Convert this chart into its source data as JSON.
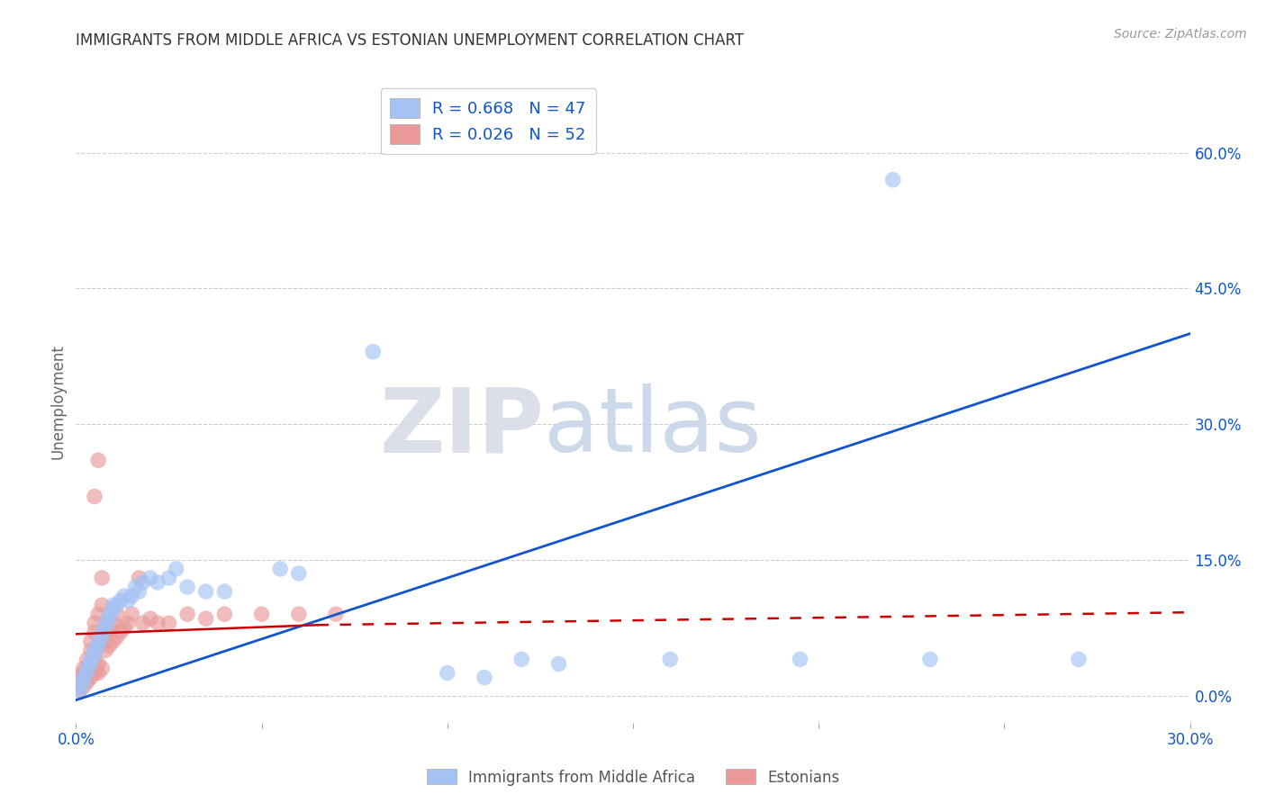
{
  "title": "IMMIGRANTS FROM MIDDLE AFRICA VS ESTONIAN UNEMPLOYMENT CORRELATION CHART",
  "source": "Source: ZipAtlas.com",
  "ylabel_label": "Unemployment",
  "right_yticks": [
    0.0,
    0.15,
    0.3,
    0.45,
    0.6
  ],
  "right_ytick_labels": [
    "0.0%",
    "15.0%",
    "30.0%",
    "45.0%",
    "60.0%"
  ],
  "xlim": [
    0.0,
    0.3
  ],
  "ylim": [
    -0.03,
    0.68
  ],
  "legend1_label": "R = 0.668   N = 47",
  "legend2_label": "R = 0.026   N = 52",
  "legend_bottom_label1": "Immigrants from Middle Africa",
  "legend_bottom_label2": "Estonians",
  "blue_color": "#a4c2f4",
  "pink_color": "#ea9999",
  "blue_line_color": "#1155cc",
  "pink_line_color": "#cc0000",
  "watermark_zip": "ZIP",
  "watermark_atlas": "atlas",
  "blue_scatter": [
    [
      0.001,
      0.01
    ],
    [
      0.001,
      0.005
    ],
    [
      0.002,
      0.02
    ],
    [
      0.002,
      0.015
    ],
    [
      0.003,
      0.03
    ],
    [
      0.003,
      0.025
    ],
    [
      0.004,
      0.035
    ],
    [
      0.004,
      0.04
    ],
    [
      0.005,
      0.045
    ],
    [
      0.005,
      0.05
    ],
    [
      0.006,
      0.055
    ],
    [
      0.006,
      0.06
    ],
    [
      0.007,
      0.065
    ],
    [
      0.007,
      0.07
    ],
    [
      0.008,
      0.075
    ],
    [
      0.008,
      0.08
    ],
    [
      0.009,
      0.085
    ],
    [
      0.009,
      0.09
    ],
    [
      0.01,
      0.095
    ],
    [
      0.01,
      0.1
    ],
    [
      0.011,
      0.1
    ],
    [
      0.012,
      0.105
    ],
    [
      0.013,
      0.11
    ],
    [
      0.014,
      0.105
    ],
    [
      0.015,
      0.11
    ],
    [
      0.016,
      0.12
    ],
    [
      0.017,
      0.115
    ],
    [
      0.018,
      0.125
    ],
    [
      0.02,
      0.13
    ],
    [
      0.022,
      0.125
    ],
    [
      0.025,
      0.13
    ],
    [
      0.027,
      0.14
    ],
    [
      0.03,
      0.12
    ],
    [
      0.035,
      0.115
    ],
    [
      0.04,
      0.115
    ],
    [
      0.055,
      0.14
    ],
    [
      0.06,
      0.135
    ],
    [
      0.08,
      0.38
    ],
    [
      0.1,
      0.025
    ],
    [
      0.11,
      0.02
    ],
    [
      0.12,
      0.04
    ],
    [
      0.13,
      0.035
    ],
    [
      0.16,
      0.04
    ],
    [
      0.195,
      0.04
    ],
    [
      0.22,
      0.57
    ],
    [
      0.23,
      0.04
    ],
    [
      0.27,
      0.04
    ]
  ],
  "pink_scatter": [
    [
      0.001,
      0.005
    ],
    [
      0.001,
      0.01
    ],
    [
      0.001,
      0.015
    ],
    [
      0.001,
      0.02
    ],
    [
      0.002,
      0.01
    ],
    [
      0.002,
      0.02
    ],
    [
      0.002,
      0.025
    ],
    [
      0.002,
      0.03
    ],
    [
      0.003,
      0.015
    ],
    [
      0.003,
      0.02
    ],
    [
      0.003,
      0.03
    ],
    [
      0.003,
      0.04
    ],
    [
      0.004,
      0.02
    ],
    [
      0.004,
      0.03
    ],
    [
      0.004,
      0.05
    ],
    [
      0.004,
      0.06
    ],
    [
      0.005,
      0.025
    ],
    [
      0.005,
      0.04
    ],
    [
      0.005,
      0.07
    ],
    [
      0.005,
      0.08
    ],
    [
      0.006,
      0.025
    ],
    [
      0.006,
      0.035
    ],
    [
      0.006,
      0.055
    ],
    [
      0.006,
      0.09
    ],
    [
      0.007,
      0.03
    ],
    [
      0.007,
      0.06
    ],
    [
      0.007,
      0.1
    ],
    [
      0.007,
      0.13
    ],
    [
      0.008,
      0.05
    ],
    [
      0.008,
      0.07
    ],
    [
      0.008,
      0.08
    ],
    [
      0.009,
      0.055
    ],
    [
      0.009,
      0.075
    ],
    [
      0.01,
      0.06
    ],
    [
      0.01,
      0.08
    ],
    [
      0.011,
      0.065
    ],
    [
      0.011,
      0.09
    ],
    [
      0.012,
      0.07
    ],
    [
      0.013,
      0.075
    ],
    [
      0.014,
      0.08
    ],
    [
      0.015,
      0.09
    ],
    [
      0.017,
      0.13
    ],
    [
      0.018,
      0.08
    ],
    [
      0.02,
      0.085
    ],
    [
      0.022,
      0.08
    ],
    [
      0.025,
      0.08
    ],
    [
      0.03,
      0.09
    ],
    [
      0.035,
      0.085
    ],
    [
      0.04,
      0.09
    ],
    [
      0.05,
      0.09
    ],
    [
      0.06,
      0.09
    ],
    [
      0.07,
      0.09
    ]
  ],
  "pink_outlier1": [
    0.005,
    0.22
  ],
  "pink_outlier2": [
    0.006,
    0.26
  ],
  "blue_trendline": [
    [
      0.0,
      -0.005
    ],
    [
      0.3,
      0.4
    ]
  ],
  "pink_trendline_solid": [
    [
      0.0,
      0.068
    ],
    [
      0.065,
      0.078
    ]
  ],
  "pink_trendline_dashed": [
    [
      0.065,
      0.078
    ],
    [
      0.3,
      0.092
    ]
  ]
}
